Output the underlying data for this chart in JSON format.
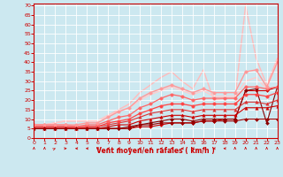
{
  "xlabel": "Vent moyen/en rafales ( km/h )",
  "bg_color": "#cce8f0",
  "grid_color": "#ffffff",
  "x_ticks": [
    0,
    1,
    2,
    3,
    4,
    5,
    6,
    7,
    8,
    9,
    10,
    11,
    12,
    13,
    14,
    15,
    16,
    17,
    18,
    19,
    20,
    21,
    22,
    23
  ],
  "y_ticks": [
    0,
    5,
    10,
    15,
    20,
    25,
    30,
    35,
    40,
    45,
    50,
    55,
    60,
    65,
    70
  ],
  "xlim": [
    0,
    23
  ],
  "ylim": [
    0,
    71
  ],
  "series": [
    {
      "y": [
        5,
        5,
        5,
        5,
        5,
        5,
        5,
        5,
        5,
        5,
        6,
        6,
        7,
        8,
        8,
        8,
        9,
        9,
        10,
        10,
        25,
        25,
        25,
        27
      ],
      "color": "#cc0000",
      "lw": 0.8,
      "marker": "D",
      "ms": 2.0
    },
    {
      "y": [
        5,
        5,
        5,
        5,
        5,
        5,
        5,
        5,
        5,
        6,
        7,
        8,
        9,
        10,
        10,
        9,
        10,
        10,
        10,
        10,
        25,
        26,
        8,
        27
      ],
      "color": "#880000",
      "lw": 0.8,
      "marker": "D",
      "ms": 2.0
    },
    {
      "y": [
        5,
        5,
        5,
        5,
        5,
        5,
        5,
        6,
        7,
        7,
        9,
        10,
        11,
        12,
        12,
        11,
        12,
        12,
        12,
        12,
        16,
        16,
        16,
        17
      ],
      "color": "#cc0000",
      "lw": 0.8,
      "marker": "^",
      "ms": 2.5
    },
    {
      "y": [
        6,
        6,
        6,
        6,
        5,
        6,
        6,
        7,
        8,
        9,
        11,
        13,
        14,
        15,
        15,
        14,
        15,
        15,
        15,
        15,
        19,
        19,
        18,
        20
      ],
      "color": "#dd3333",
      "lw": 0.8,
      "marker": "^",
      "ms": 2.5
    },
    {
      "y": [
        6,
        6,
        6,
        6,
        6,
        6,
        6,
        8,
        9,
        10,
        13,
        15,
        17,
        18,
        18,
        17,
        18,
        18,
        18,
        18,
        23,
        23,
        22,
        24
      ],
      "color": "#ff4444",
      "lw": 0.9,
      "marker": "o",
      "ms": 2.5
    },
    {
      "y": [
        7,
        7,
        7,
        7,
        6,
        7,
        7,
        9,
        11,
        12,
        16,
        18,
        21,
        23,
        22,
        20,
        21,
        21,
        21,
        21,
        27,
        27,
        26,
        27
      ],
      "color": "#ff6666",
      "lw": 0.9,
      "marker": "o",
      "ms": 2.5
    },
    {
      "y": [
        7,
        7,
        7,
        7,
        7,
        8,
        8,
        11,
        14,
        16,
        21,
        24,
        26,
        28,
        26,
        24,
        26,
        24,
        24,
        24,
        35,
        36,
        27,
        40
      ],
      "color": "#ff9999",
      "lw": 1.0,
      "marker": "o",
      "ms": 2.5
    },
    {
      "y": [
        5,
        5,
        5,
        5,
        5,
        5,
        5,
        5,
        5,
        5,
        7,
        7,
        8,
        8,
        8,
        8,
        9,
        9,
        9,
        9,
        10,
        10,
        10,
        10
      ],
      "color": "#990000",
      "lw": 0.8,
      "marker": "D",
      "ms": 2.0
    }
  ],
  "peak_series": {
    "y": [
      7,
      7,
      8,
      9,
      9,
      9,
      9,
      12,
      15,
      18,
      24,
      28,
      32,
      35,
      30,
      26,
      36,
      20,
      21,
      21,
      70,
      42,
      28,
      42
    ],
    "color": "#ffbbbb",
    "lw": 1.0,
    "marker": null,
    "ms": 0
  },
  "peak_series2": {
    "y": [
      7,
      7,
      8,
      9,
      9,
      9,
      9,
      12,
      14,
      16,
      20,
      23,
      25,
      27,
      25,
      23,
      25,
      22,
      22,
      22,
      30,
      32,
      26,
      41
    ],
    "color": "#ffcccc",
    "lw": 1.0,
    "marker": null,
    "ms": 0
  },
  "arrows": [
    0,
    0,
    45,
    90,
    270,
    270,
    270,
    270,
    270,
    270,
    270,
    270,
    270,
    270,
    270,
    270,
    270,
    270,
    270,
    0,
    0,
    0,
    0,
    0
  ]
}
